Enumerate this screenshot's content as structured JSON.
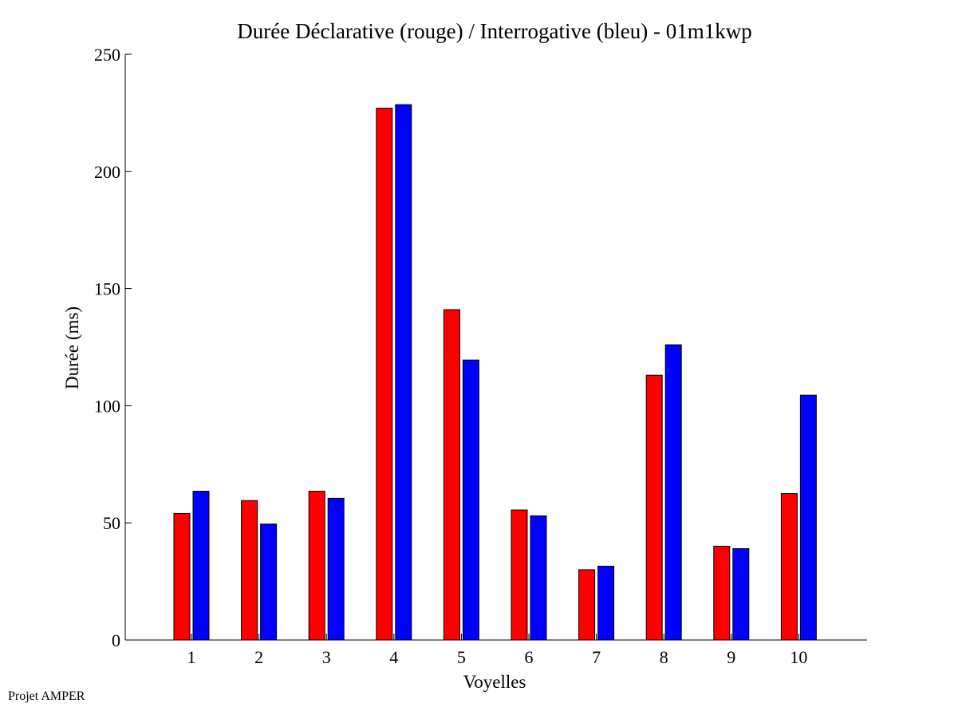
{
  "chart_data": {
    "type": "bar",
    "title": "Durée Déclarative (rouge) / Interrogative (bleu) - 01m1kwp",
    "xlabel": "Voyelles",
    "ylabel": "Durée (ms)",
    "ylim": [
      0,
      250
    ],
    "yticks": [
      0,
      50,
      100,
      150,
      200,
      250
    ],
    "categories": [
      "1",
      "2",
      "3",
      "4",
      "5",
      "6",
      "7",
      "8",
      "9",
      "10"
    ],
    "series": [
      {
        "color": "#ff0000",
        "values": [
          54,
          59.5,
          63.5,
          227,
          141,
          55.5,
          30,
          113,
          40,
          62.5
        ]
      },
      {
        "color": "#0000ff",
        "values": [
          63.5,
          49.5,
          60.5,
          228.5,
          119.5,
          53,
          31.5,
          126,
          39,
          104.5
        ]
      }
    ],
    "grid": false,
    "legend": "none"
  },
  "footer": {
    "text": "Projet AMPER"
  }
}
